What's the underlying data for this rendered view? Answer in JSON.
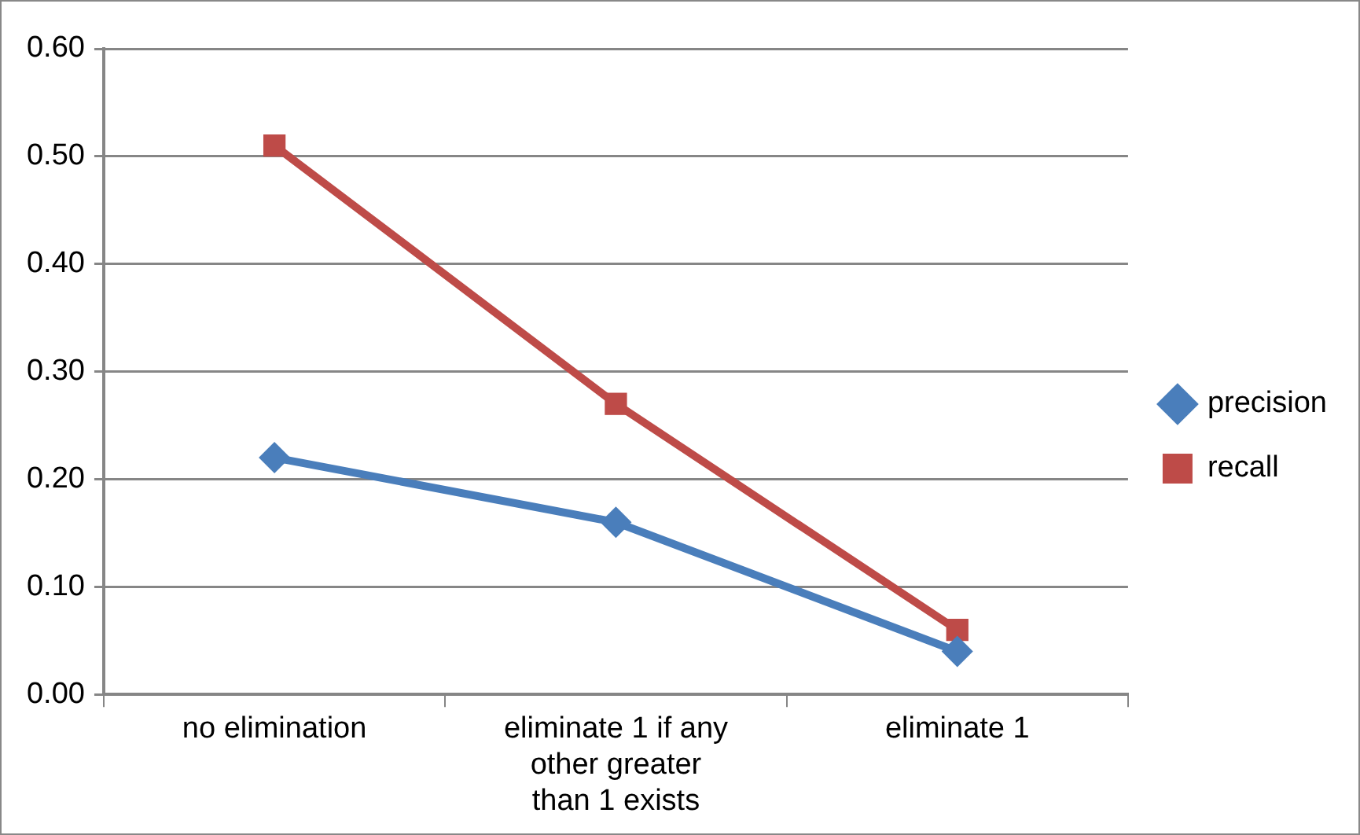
{
  "chart_data": {
    "type": "line",
    "categories": [
      "no elimination",
      "eliminate 1 if any other greater than 1 exists",
      "eliminate 1"
    ],
    "series": [
      {
        "name": "precision",
        "color": "#4a7ebb",
        "values": [
          0.22,
          0.16,
          0.04
        ],
        "marker": "diamond"
      },
      {
        "name": "recall",
        "color": "#be4b48",
        "values": [
          0.51,
          0.27,
          0.06
        ],
        "marker": "square"
      }
    ],
    "ylim": [
      0,
      0.6
    ],
    "yticks": [
      {
        "value": 0,
        "label": "0.00"
      },
      {
        "value": 0.1,
        "label": "0.10"
      },
      {
        "value": 0.2,
        "label": "0.20"
      },
      {
        "value": 0.3,
        "label": "0.30"
      },
      {
        "value": 0.4,
        "label": "0.40"
      },
      {
        "value": 0.5,
        "label": "0.50"
      },
      {
        "value": 0.6,
        "label": "0.60"
      }
    ],
    "grid": "y",
    "legend": "right",
    "line_style": "solid"
  }
}
